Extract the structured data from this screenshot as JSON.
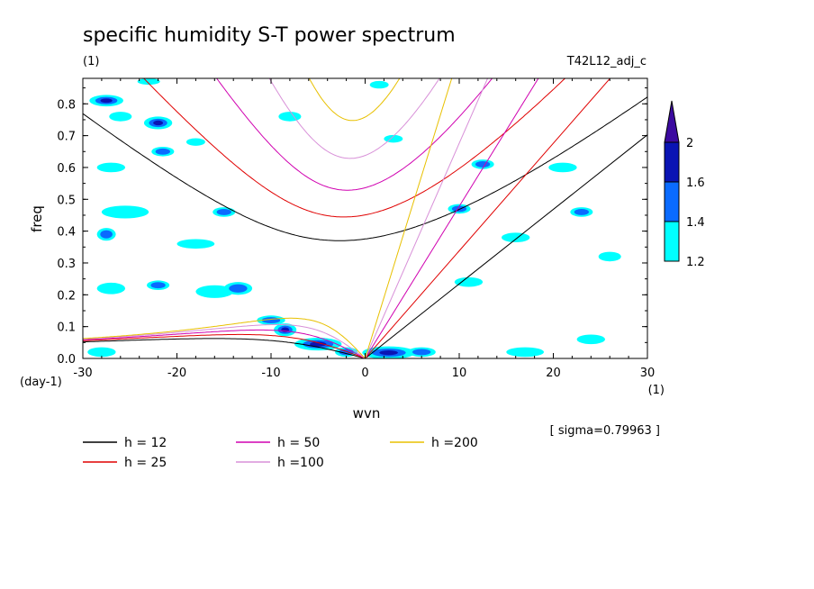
{
  "chart_data": {
    "type": "line",
    "title": "specific humidity S-T power spectrum",
    "subtitle_left": "(1)",
    "subtitle_right": "T42L12_adj_c",
    "xlabel": "wvn",
    "ylabel": "freq",
    "x_unit": "(1)",
    "y_unit": "(day-1)",
    "xlim": [
      -30,
      30
    ],
    "ylim": [
      0,
      0.88
    ],
    "xticks": [
      -30,
      -20,
      -10,
      0,
      10,
      20,
      30
    ],
    "xtick_labels": [
      "-30",
      "-20",
      "-10",
      "0",
      "10",
      "20",
      "30"
    ],
    "yticks": [
      0,
      0.1,
      0.2,
      0.3,
      0.4,
      0.5,
      0.6,
      0.7,
      0.8
    ],
    "ytick_labels": [
      "0.0",
      "0.1",
      "0.2",
      "0.3",
      "0.4",
      "0.5",
      "0.6",
      "0.7",
      "0.8"
    ],
    "sigma_note": "[ sigma=0.79963 ]",
    "colorbar": {
      "levels": [
        "1.2",
        "1.4",
        "1.6",
        "2"
      ],
      "colors": [
        "#00ffff",
        "#0a6bff",
        "#0a14b4",
        "#3c0aa0"
      ]
    },
    "series": [
      {
        "name": "h = 12",
        "h": 12,
        "color": "#000000"
      },
      {
        "name": "h = 25",
        "h": 25,
        "color": "#e00000"
      },
      {
        "name": "h = 50",
        "h": 50,
        "color": "#d000b0"
      },
      {
        "name": "h =100",
        "h": 100,
        "color": "#d890d8"
      },
      {
        "name": "h =200",
        "h": 200,
        "color": "#e8c000"
      }
    ],
    "contour_blobs": [
      {
        "x": -27.5,
        "y": 0.81,
        "rx": 1.8,
        "ry": 0.018,
        "level": 2
      },
      {
        "x": -26,
        "y": 0.76,
        "rx": 1.2,
        "ry": 0.015,
        "level": 0
      },
      {
        "x": -22,
        "y": 0.74,
        "rx": 1.5,
        "ry": 0.02,
        "level": 2
      },
      {
        "x": -21.5,
        "y": 0.65,
        "rx": 1.2,
        "ry": 0.015,
        "level": 1
      },
      {
        "x": -27.5,
        "y": 0.39,
        "rx": 1.0,
        "ry": 0.02,
        "level": 1
      },
      {
        "x": -25.5,
        "y": 0.46,
        "rx": 2.5,
        "ry": 0.02,
        "level": 0
      },
      {
        "x": -27,
        "y": 0.6,
        "rx": 1.5,
        "ry": 0.015,
        "level": 0
      },
      {
        "x": -18,
        "y": 0.36,
        "rx": 2.0,
        "ry": 0.015,
        "level": 0
      },
      {
        "x": -15,
        "y": 0.46,
        "rx": 1.2,
        "ry": 0.015,
        "level": 1
      },
      {
        "x": -22,
        "y": 0.23,
        "rx": 1.2,
        "ry": 0.015,
        "level": 1
      },
      {
        "x": -16,
        "y": 0.21,
        "rx": 2.0,
        "ry": 0.02,
        "level": 0
      },
      {
        "x": -13.5,
        "y": 0.22,
        "rx": 1.5,
        "ry": 0.02,
        "level": 1
      },
      {
        "x": -27,
        "y": 0.22,
        "rx": 1.5,
        "ry": 0.018,
        "level": 0
      },
      {
        "x": -10,
        "y": 0.12,
        "rx": 1.5,
        "ry": 0.015,
        "level": 1
      },
      {
        "x": -8.5,
        "y": 0.09,
        "rx": 1.2,
        "ry": 0.02,
        "level": 2
      },
      {
        "x": -5,
        "y": 0.045,
        "rx": 2.5,
        "ry": 0.02,
        "level": 2
      },
      {
        "x": -2,
        "y": 0.02,
        "rx": 1.2,
        "ry": 0.015,
        "level": 1
      },
      {
        "x": 2.5,
        "y": 0.018,
        "rx": 2.8,
        "ry": 0.02,
        "level": 2
      },
      {
        "x": 6,
        "y": 0.02,
        "rx": 1.5,
        "ry": 0.015,
        "level": 1
      },
      {
        "x": -28,
        "y": 0.02,
        "rx": 1.5,
        "ry": 0.015,
        "level": 0
      },
      {
        "x": 17,
        "y": 0.02,
        "rx": 2.0,
        "ry": 0.015,
        "level": 0
      },
      {
        "x": 24,
        "y": 0.06,
        "rx": 1.5,
        "ry": 0.015,
        "level": 0
      },
      {
        "x": 3,
        "y": 0.69,
        "rx": 1.0,
        "ry": 0.012,
        "level": 0
      },
      {
        "x": 12.5,
        "y": 0.61,
        "rx": 1.2,
        "ry": 0.015,
        "level": 1
      },
      {
        "x": 10,
        "y": 0.47,
        "rx": 1.2,
        "ry": 0.015,
        "level": 1
      },
      {
        "x": 16,
        "y": 0.38,
        "rx": 1.5,
        "ry": 0.015,
        "level": 0
      },
      {
        "x": 23,
        "y": 0.46,
        "rx": 1.2,
        "ry": 0.015,
        "level": 1
      },
      {
        "x": 21,
        "y": 0.6,
        "rx": 1.5,
        "ry": 0.015,
        "level": 0
      },
      {
        "x": 26,
        "y": 0.32,
        "rx": 1.2,
        "ry": 0.015,
        "level": 0
      },
      {
        "x": 11,
        "y": 0.24,
        "rx": 1.5,
        "ry": 0.015,
        "level": 0
      },
      {
        "x": -8,
        "y": 0.76,
        "rx": 1.2,
        "ry": 0.015,
        "level": 0
      },
      {
        "x": -23,
        "y": 0.87,
        "rx": 1.2,
        "ry": 0.01,
        "level": 0
      },
      {
        "x": -18,
        "y": 0.68,
        "rx": 1.0,
        "ry": 0.012,
        "level": 0
      },
      {
        "x": 1.5,
        "y": 0.86,
        "rx": 1.0,
        "ry": 0.012,
        "level": 0
      }
    ]
  }
}
